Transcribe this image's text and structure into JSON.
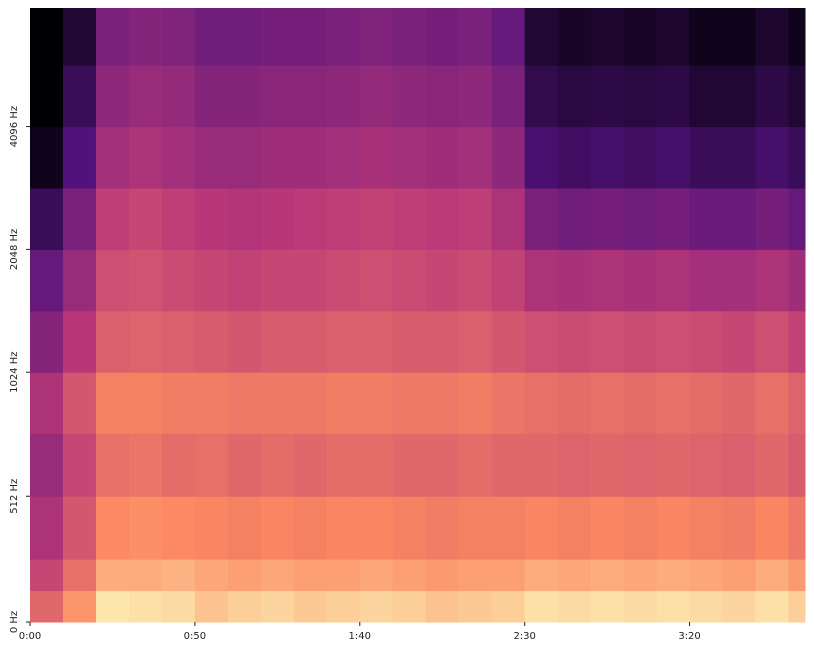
{
  "chart_data": {
    "type": "spectrogram",
    "colormap": "magma",
    "zlim": [
      -80,
      0
    ],
    "yscale": "symlog",
    "linthresh": 1000,
    "xlim": [
      0,
      235
    ],
    "ylim": [
      0,
      8000
    ],
    "xticks": [
      {
        "value": 0,
        "label": "0:00"
      },
      {
        "value": 50,
        "label": "0:50"
      },
      {
        "value": 100,
        "label": "1:40"
      },
      {
        "value": 150,
        "label": "2:30"
      },
      {
        "value": 200,
        "label": "3:20"
      }
    ],
    "yticks": [
      {
        "value": 0,
        "label": "0 Hz"
      },
      {
        "value": 512,
        "label": "512 Hz"
      },
      {
        "value": 1024,
        "label": "1024 Hz"
      },
      {
        "value": 2048,
        "label": "2048 Hz"
      },
      {
        "value": 4096,
        "label": "4096 Hz"
      }
    ],
    "x": [
      0,
      10,
      20,
      30,
      40,
      50,
      60,
      70,
      80,
      90,
      100,
      110,
      120,
      130,
      140,
      150,
      160,
      170,
      180,
      190,
      200,
      210,
      220,
      230,
      235
    ],
    "y": [
      0,
      128,
      256,
      512,
      768,
      1024,
      1448,
      2048,
      2896,
      4096,
      5793,
      8000
    ],
    "values": [
      [
        -28,
        -36,
        -42,
        -46,
        -42,
        -50,
        -56,
        -66,
        -76,
        -80,
        -80
      ],
      [
        -18,
        -26,
        -32,
        -36,
        -32,
        -40,
        -46,
        -52,
        -60,
        -66,
        -72
      ],
      [
        -4,
        -14,
        -20,
        -26,
        -22,
        -30,
        -34,
        -38,
        -44,
        -48,
        -52
      ],
      [
        -5,
        -14,
        -19,
        -25,
        -22,
        -29,
        -33,
        -36,
        -42,
        -46,
        -50
      ],
      [
        -6,
        -13,
        -20,
        -27,
        -23,
        -30,
        -35,
        -38,
        -44,
        -47,
        -51
      ],
      [
        -10,
        -15,
        -21,
        -26,
        -23,
        -31,
        -36,
        -40,
        -46,
        -50,
        -54
      ],
      [
        -8,
        -16,
        -22,
        -28,
        -24,
        -32,
        -37,
        -41,
        -46,
        -50,
        -54
      ],
      [
        -7,
        -15,
        -21,
        -27,
        -24,
        -31,
        -36,
        -40,
        -45,
        -49,
        -53
      ],
      [
        -9,
        -16,
        -22,
        -28,
        -24,
        -31,
        -36,
        -39,
        -45,
        -49,
        -53
      ],
      [
        -8,
        -16,
        -21,
        -27,
        -23,
        -30,
        -35,
        -38,
        -44,
        -48,
        -52
      ],
      [
        -7,
        -15,
        -21,
        -27,
        -23,
        -30,
        -34,
        -37,
        -43,
        -47,
        -51
      ],
      [
        -8,
        -16,
        -22,
        -28,
        -24,
        -31,
        -35,
        -38,
        -44,
        -48,
        -52
      ],
      [
        -10,
        -17,
        -23,
        -28,
        -24,
        -31,
        -36,
        -39,
        -45,
        -49,
        -53
      ],
      [
        -9,
        -16,
        -22,
        -27,
        -23,
        -30,
        -35,
        -38,
        -44,
        -48,
        -52
      ],
      [
        -8,
        -16,
        -22,
        -28,
        -25,
        -32,
        -37,
        -42,
        -48,
        -52,
        -56
      ],
      [
        -5,
        -14,
        -21,
        -28,
        -26,
        -34,
        -42,
        -52,
        -62,
        -68,
        -72
      ],
      [
        -6,
        -15,
        -22,
        -29,
        -27,
        -35,
        -43,
        -54,
        -64,
        -70,
        -74
      ],
      [
        -5,
        -14,
        -21,
        -28,
        -26,
        -34,
        -42,
        -53,
        -63,
        -69,
        -73
      ],
      [
        -6,
        -15,
        -22,
        -29,
        -27,
        -35,
        -43,
        -54,
        -64,
        -70,
        -74
      ],
      [
        -5,
        -14,
        -21,
        -28,
        -26,
        -34,
        -42,
        -53,
        -63,
        -69,
        -73
      ],
      [
        -6,
        -15,
        -22,
        -29,
        -27,
        -35,
        -44,
        -55,
        -66,
        -72,
        -76
      ],
      [
        -7,
        -16,
        -23,
        -30,
        -28,
        -36,
        -44,
        -55,
        -66,
        -72,
        -76
      ],
      [
        -5,
        -14,
        -21,
        -28,
        -26,
        -34,
        -42,
        -53,
        -63,
        -69,
        -73
      ],
      [
        -8,
        -17,
        -24,
        -31,
        -29,
        -37,
        -45,
        -56,
        -66,
        -72,
        -76
      ]
    ]
  }
}
